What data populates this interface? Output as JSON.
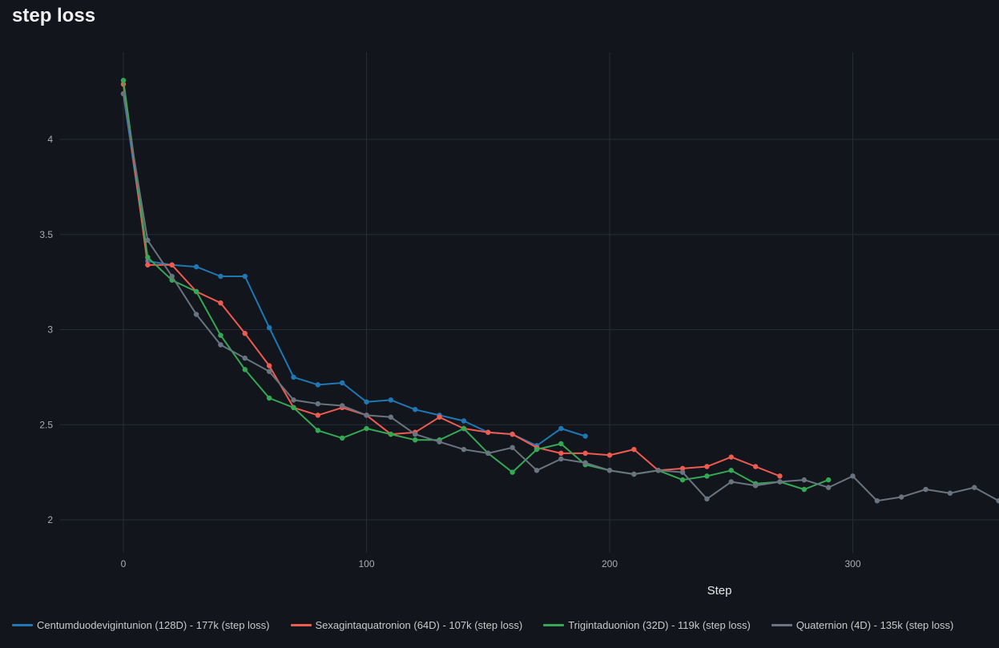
{
  "title": "step loss",
  "chart_data": {
    "type": "line",
    "title": "step loss",
    "xlabel": "Step",
    "ylabel": "",
    "xlim": [
      -30,
      360
    ],
    "ylim": [
      1.85,
      4.46
    ],
    "xticks": [
      0,
      100,
      200,
      300
    ],
    "yticks": [
      2,
      2.5,
      3,
      3.5,
      4
    ],
    "ytick_labels": [
      "2",
      "2.5",
      "3",
      "3.5",
      "4"
    ],
    "grid": true,
    "legend_position": "bottom",
    "series": [
      {
        "name": "Centumduodevigintunion (128D) - 177k (step loss)",
        "color": "#1f77b4",
        "x": [
          0,
          10,
          20,
          30,
          40,
          50,
          60,
          70,
          80,
          90,
          100,
          110,
          120,
          130,
          140,
          150,
          160,
          170,
          180,
          190
        ],
        "y": [
          4.24,
          3.36,
          3.34,
          3.33,
          3.28,
          3.28,
          3.01,
          2.75,
          2.71,
          2.72,
          2.62,
          2.63,
          2.58,
          2.55,
          2.52,
          2.46,
          2.45,
          2.39,
          2.48,
          2.44
        ]
      },
      {
        "name": "Sexagintaquatronion (64D) - 107k (step loss)",
        "color": "#ef5b50",
        "x": [
          0,
          10,
          20,
          30,
          40,
          50,
          60,
          70,
          80,
          90,
          100,
          110,
          120,
          130,
          140,
          150,
          160,
          170,
          180,
          190,
          200,
          210,
          220,
          230,
          240,
          250,
          260,
          270
        ],
        "y": [
          4.29,
          3.34,
          3.34,
          3.2,
          3.14,
          2.98,
          2.81,
          2.59,
          2.55,
          2.59,
          2.55,
          2.45,
          2.46,
          2.54,
          2.48,
          2.46,
          2.45,
          2.38,
          2.35,
          2.35,
          2.34,
          2.37,
          2.26,
          2.27,
          2.28,
          2.33,
          2.28,
          2.23
        ]
      },
      {
        "name": "Trigintaduonion (32D) - 119k (step loss)",
        "color": "#34a853",
        "x": [
          0,
          10,
          20,
          30,
          40,
          50,
          60,
          70,
          80,
          90,
          100,
          110,
          120,
          130,
          140,
          150,
          160,
          170,
          180,
          190,
          200,
          210,
          220,
          230,
          240,
          250,
          260,
          270,
          280,
          290
        ],
        "y": [
          4.31,
          3.38,
          3.26,
          3.2,
          2.97,
          2.79,
          2.64,
          2.59,
          2.47,
          2.43,
          2.48,
          2.45,
          2.42,
          2.42,
          2.48,
          2.35,
          2.25,
          2.37,
          2.4,
          2.29,
          2.26,
          2.24,
          2.26,
          2.21,
          2.23,
          2.26,
          2.19,
          2.2,
          2.16,
          2.21
        ]
      },
      {
        "name": "Quaternion (4D) - 135k (step loss)",
        "color": "#6a7480",
        "x": [
          0,
          10,
          20,
          30,
          40,
          50,
          60,
          70,
          80,
          90,
          100,
          110,
          120,
          130,
          140,
          150,
          160,
          170,
          180,
          190,
          200,
          210,
          220,
          230,
          240,
          250,
          260,
          270,
          280,
          290,
          300,
          310,
          320,
          330,
          340,
          350,
          360
        ],
        "y": [
          4.24,
          3.47,
          3.28,
          3.08,
          2.92,
          2.85,
          2.78,
          2.63,
          2.61,
          2.6,
          2.55,
          2.54,
          2.45,
          2.41,
          2.37,
          2.35,
          2.38,
          2.26,
          2.32,
          2.3,
          2.26,
          2.24,
          2.26,
          2.25,
          2.11,
          2.2,
          2.18,
          2.2,
          2.21,
          2.17,
          2.23,
          2.1,
          2.12,
          2.16,
          2.14,
          2.17,
          2.1
        ]
      }
    ]
  }
}
